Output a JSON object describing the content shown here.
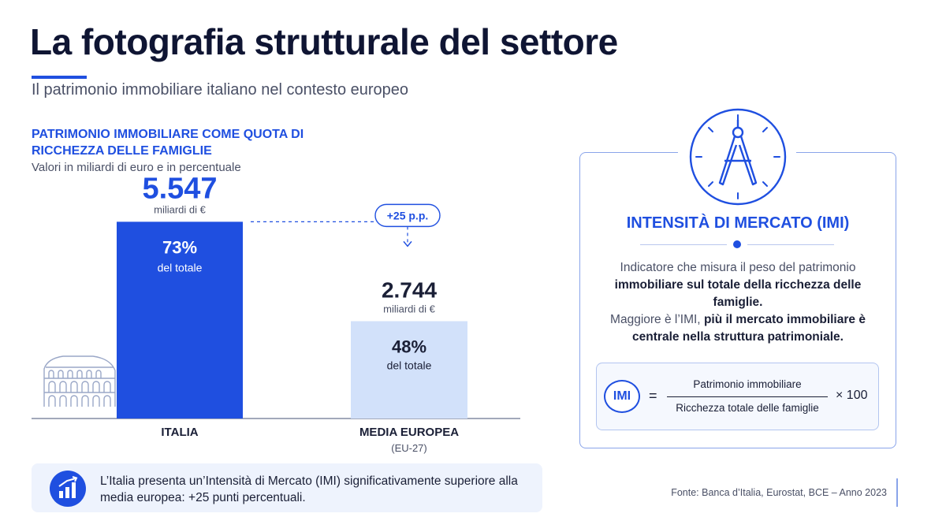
{
  "header": {
    "title": "La fotografia strutturale del settore",
    "subtitle": "Il patrimonio immobiliare italiano nel contesto europeo"
  },
  "chart_data": {
    "type": "bar",
    "title": "PATRIMONIO IMMOBILIARE COME QUOTA DI RICCHEZZA DELLE FAMIGLIE",
    "subtitle": "Valori in miliardi di euro e in percentuale",
    "categories": [
      "ITALIA",
      "MEDIA EUROPEA"
    ],
    "category_notes": [
      "",
      "(EU-27)"
    ],
    "series": [
      {
        "values": [
          5547,
          2744
        ],
        "value_labels": [
          "5.547",
          "2.744"
        ],
        "value_unit": "miliardi di €",
        "shares": [
          73,
          48
        ],
        "share_labels": [
          "73%",
          "48%"
        ],
        "share_unit": "del totale"
      }
    ],
    "difference_label": "+25 p.p.",
    "ylim": [
      0,
      6000
    ],
    "grid": false,
    "bar_colors": [
      "#1f4fe0",
      "#d2e1fa"
    ]
  },
  "callout": {
    "text": "L’Italia presenta un’Intensità di Mercato (IMI) significativamente superiore alla media europea: +25 punti percentuali.",
    "icon": "bar-chart-icon"
  },
  "imi_panel": {
    "icon": "compass-icon",
    "title": "INTENSITÀ DI MERCATO (IMI)",
    "desc_1": "Indicatore che misura il peso del patrimonio ",
    "desc_2": "immobiliare sul totale della ricchezza delle famiglie.",
    "desc_3": "Maggiore è l’IMI, ",
    "desc_4": "più il mercato immobiliare è centrale nella struttura patrimoniale.",
    "formula": {
      "badge": "IMI",
      "equals": "=",
      "numerator": "Patrimonio immobiliare",
      "denominator": "Ricchezza totale delle famiglie",
      "multiplier": "× 100"
    }
  },
  "source": "Fonte: Banca d’Italia, Eurostat, BCE – Anno 2023",
  "colors": {
    "accent": "#1f4fe0",
    "light_bar": "#d2e1fa",
    "text_dark": "#0f1533"
  }
}
